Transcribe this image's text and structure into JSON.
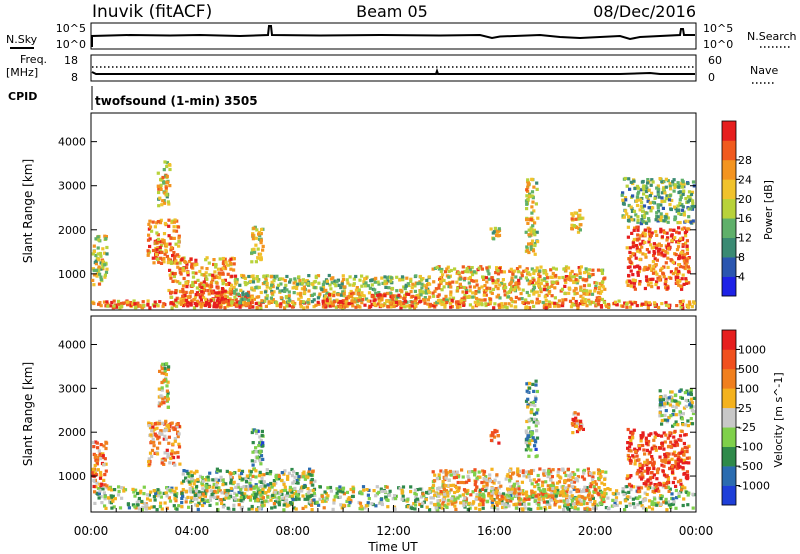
{
  "header": {
    "site": "Inuvik (fitACF)",
    "beam": "Beam 05",
    "date": "08/Dec/2016"
  },
  "top_panels": {
    "nsky_label": "N.Sky",
    "nsky_ticks": [
      "10^5",
      "10^0"
    ],
    "nsearch_label": "N.Search",
    "nsearch_ticks": [
      "10^5",
      "10^0"
    ],
    "freq_label": "Freq.",
    "freq_unit": "[MHz]",
    "freq_ticks": [
      "18",
      "8"
    ],
    "nave_label": "Nave",
    "nave_ticks": [
      "60",
      "0"
    ],
    "cpid_label": "CPID",
    "cpid_text": "twofsound (1-min) 3505"
  },
  "chart_data": [
    {
      "type": "heatmap",
      "name": "power",
      "ylabel": "Slant Range [km]",
      "yticks": [
        1000,
        2000,
        3000,
        4000
      ],
      "ylim": [
        180,
        4650
      ],
      "xlim": [
        0,
        24
      ],
      "colorbar": {
        "label": "Power [dB]",
        "ticks": [
          "4",
          "8",
          "12",
          "16",
          "20",
          "24",
          "28"
        ],
        "colors": [
          "#1e22e6",
          "#2b56b0",
          "#3a8a73",
          "#5fb06a",
          "#b8d23a",
          "#f0c22c",
          "#f39420",
          "#f05a1e",
          "#e61e1e"
        ]
      },
      "regions": [
        {
          "t0": 0.0,
          "t1": 24.0,
          "r0": 190,
          "r1": 420,
          "level": 0.72
        },
        {
          "t0": 0.0,
          "t1": 0.7,
          "r0": 700,
          "r1": 1900,
          "level": 0.55
        },
        {
          "t0": 2.2,
          "t1": 3.6,
          "r0": 1200,
          "r1": 2300,
          "level": 0.75
        },
        {
          "t0": 2.6,
          "t1": 3.2,
          "r0": 2500,
          "r1": 3600,
          "level": 0.55
        },
        {
          "t0": 3.0,
          "t1": 5.8,
          "r0": 250,
          "r1": 1400,
          "level": 0.72
        },
        {
          "t0": 3.5,
          "t1": 6.5,
          "r0": 200,
          "r1": 650,
          "level": 0.9
        },
        {
          "t0": 5.5,
          "t1": 13.5,
          "r0": 300,
          "r1": 1000,
          "level": 0.5
        },
        {
          "t0": 6.3,
          "t1": 6.9,
          "r0": 1200,
          "r1": 2100,
          "level": 0.55
        },
        {
          "t0": 9.0,
          "t1": 13.0,
          "r0": 200,
          "r1": 600,
          "level": 0.8
        },
        {
          "t0": 13.5,
          "t1": 20.5,
          "r0": 300,
          "r1": 1200,
          "level": 0.65
        },
        {
          "t0": 15.8,
          "t1": 16.3,
          "r0": 1700,
          "r1": 2100,
          "level": 0.55
        },
        {
          "t0": 17.2,
          "t1": 17.8,
          "r0": 1400,
          "r1": 3200,
          "level": 0.55
        },
        {
          "t0": 19.0,
          "t1": 19.6,
          "r0": 1900,
          "r1": 2500,
          "level": 0.6
        },
        {
          "t0": 21.2,
          "t1": 23.8,
          "r0": 600,
          "r1": 2100,
          "level": 0.85
        },
        {
          "t0": 21.0,
          "t1": 24.0,
          "r0": 2100,
          "r1": 3200,
          "level": 0.4
        }
      ]
    },
    {
      "type": "heatmap",
      "name": "velocity",
      "ylabel": "Slant Range [km]",
      "xlabel": "Time UT",
      "yticks": [
        1000,
        2000,
        3000,
        4000
      ],
      "ylim": [
        180,
        4650
      ],
      "xlim": [
        0,
        24
      ],
      "xticks": [
        "00:00",
        "04:00",
        "08:00",
        "12:00",
        "16:00",
        "20:00",
        "00:00"
      ],
      "colorbar": {
        "label": "Velocity [m s^-1]",
        "ticks": [
          "1000",
          "500",
          "100",
          "25",
          "-25",
          "-100",
          "-500",
          "-1000"
        ],
        "colors": [
          "#1e3fd8",
          "#2b6cb0",
          "#2f8a4a",
          "#7fd04a",
          "#c8c8c8",
          "#f4b21e",
          "#f07f1e",
          "#f0501e",
          "#e61e1e"
        ]
      },
      "regions": [
        {
          "t0": 0.0,
          "t1": 24.0,
          "r0": 190,
          "r1": 800,
          "level": 0.45
        },
        {
          "t0": 0.0,
          "t1": 0.7,
          "r0": 700,
          "r1": 1900,
          "level": 0.72
        },
        {
          "t0": 2.2,
          "t1": 3.6,
          "r0": 1200,
          "r1": 2300,
          "level": 0.7
        },
        {
          "t0": 2.6,
          "t1": 3.2,
          "r0": 2500,
          "r1": 3600,
          "level": 0.55
        },
        {
          "t0": 3.5,
          "t1": 9.0,
          "r0": 400,
          "r1": 1200,
          "level": 0.45
        },
        {
          "t0": 6.3,
          "t1": 6.9,
          "r0": 1200,
          "r1": 2100,
          "level": 0.3
        },
        {
          "t0": 13.5,
          "t1": 20.5,
          "r0": 300,
          "r1": 1200,
          "level": 0.6
        },
        {
          "t0": 15.8,
          "t1": 16.3,
          "r0": 1700,
          "r1": 2100,
          "level": 0.75
        },
        {
          "t0": 17.2,
          "t1": 17.8,
          "r0": 1400,
          "r1": 3200,
          "level": 0.35
        },
        {
          "t0": 19.0,
          "t1": 19.6,
          "r0": 1900,
          "r1": 2500,
          "level": 0.75
        },
        {
          "t0": 21.2,
          "t1": 23.8,
          "r0": 600,
          "r1": 2100,
          "level": 0.85
        },
        {
          "t0": 22.5,
          "t1": 24.0,
          "r0": 2100,
          "r1": 3000,
          "level": 0.4
        }
      ]
    }
  ]
}
